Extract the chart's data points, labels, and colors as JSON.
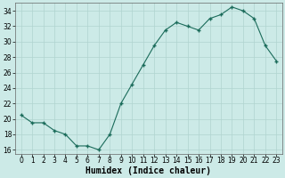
{
  "x": [
    0,
    1,
    2,
    3,
    4,
    5,
    6,
    7,
    8,
    9,
    10,
    11,
    12,
    13,
    14,
    15,
    16,
    17,
    18,
    19,
    20,
    21,
    22,
    23
  ],
  "y": [
    20.5,
    19.5,
    19.5,
    18.5,
    18.0,
    16.5,
    16.5,
    16.0,
    18.0,
    22.0,
    24.5,
    27.0,
    29.5,
    31.5,
    32.5,
    32.0,
    31.5,
    33.0,
    33.5,
    34.5,
    34.0,
    33.0,
    29.5,
    27.5
  ],
  "line_color": "#1a6b5a",
  "marker_color": "#1a6b5a",
  "bg_color": "#cceae7",
  "grid_color": "#b0d4d0",
  "xlabel": "Humidex (Indice chaleur)",
  "ylim": [
    15.5,
    35.0
  ],
  "xlim": [
    -0.5,
    23.5
  ],
  "yticks": [
    16,
    18,
    20,
    22,
    24,
    26,
    28,
    30,
    32,
    34
  ],
  "xtick_labels": [
    "0",
    "1",
    "2",
    "3",
    "4",
    "5",
    "6",
    "7",
    "8",
    "9",
    "10",
    "11",
    "12",
    "13",
    "14",
    "15",
    "16",
    "17",
    "18",
    "19",
    "20",
    "21",
    "22",
    "23"
  ],
  "tick_fontsize": 5.5,
  "xlabel_fontsize": 7.0
}
